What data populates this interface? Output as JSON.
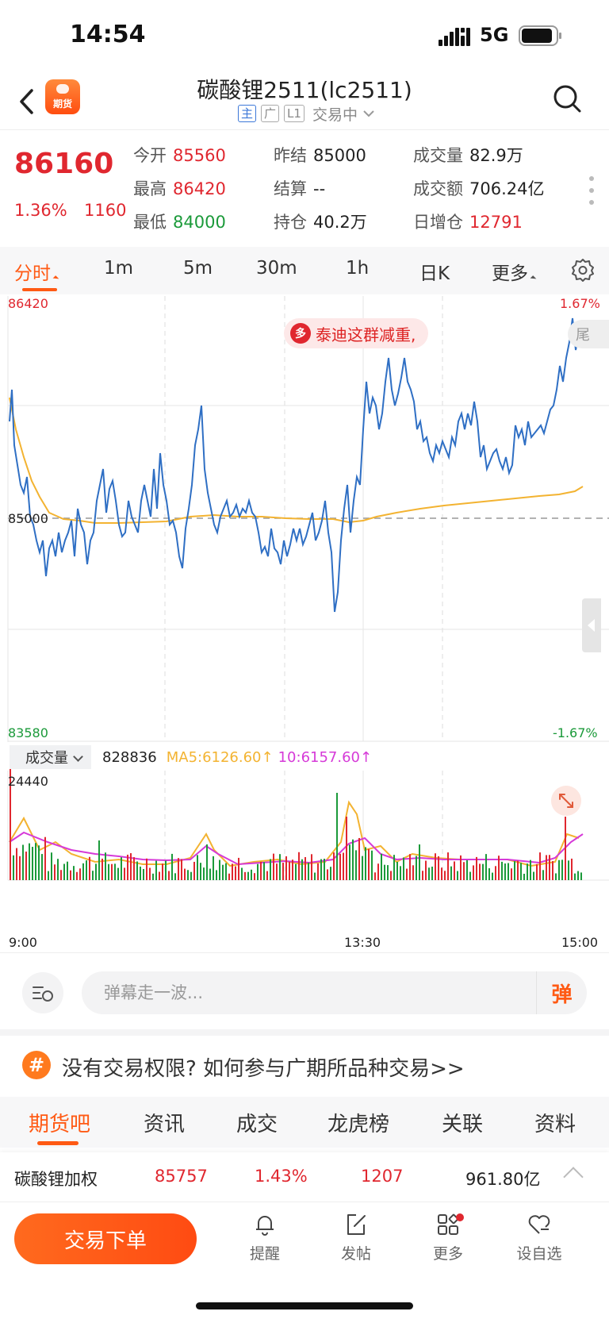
{
  "status_bar": {
    "time": "14:54",
    "network": "5G"
  },
  "header": {
    "logo_text": "期货",
    "title": "碳酸锂2511(lc2511)",
    "tags": [
      "主",
      "广",
      "L1"
    ],
    "trade_status": "交易中"
  },
  "quote": {
    "last_price": "86160",
    "change_pct": "1.36%",
    "change_abs": "1160",
    "stats": [
      {
        "label": "今开",
        "value": "85560",
        "color": "red"
      },
      {
        "label": "昨结",
        "value": "85000",
        "color": "dark"
      },
      {
        "label": "成交量",
        "value": "82.9万",
        "color": "dark"
      },
      {
        "label": "最高",
        "value": "86420",
        "color": "red"
      },
      {
        "label": "结算",
        "value": "--",
        "color": "dark"
      },
      {
        "label": "成交额",
        "value": "706.24亿",
        "color": "dark"
      },
      {
        "label": "最低",
        "value": "84000",
        "color": "green"
      },
      {
        "label": "持仓",
        "value": "40.2万",
        "color": "dark"
      },
      {
        "label": "日增仓",
        "value": "12791",
        "color": "red"
      }
    ]
  },
  "chart_tabs": [
    "分时",
    "1m",
    "5m",
    "30m",
    "1h",
    "日K",
    "更多"
  ],
  "chart": {
    "price_high": "86420",
    "price_low": "83580",
    "pct_high": "1.67%",
    "pct_low": "-1.67%",
    "prev_settle": "85000",
    "news_text": "泰迪这群减重,",
    "tail_text": "尾",
    "volume_selector": "成交量",
    "volume_value": "828836",
    "ma5": "MA5:6126.60↑",
    "ma10": "10:6157.60↑",
    "volume_max": "24440",
    "time_start": "9:00",
    "time_mid": "13:30",
    "time_end": "15:00",
    "colors": {
      "up": "#e0272f",
      "down": "#1b9a3a",
      "price_line": "#2f6fc4",
      "avg_line": "#f3b331",
      "ma10": "#d63ad8"
    }
  },
  "danmaku": {
    "placeholder": "弹幕走一波...",
    "send_label": "弹"
  },
  "promo": {
    "icon": "#",
    "text": "没有交易权限? 如何参与广期所品种交易>>"
  },
  "bottom_tabs": [
    "期货吧",
    "资讯",
    "成交",
    "龙虎榜",
    "关联",
    "资料"
  ],
  "weighted": {
    "name": "碳酸锂加权",
    "price": "85757",
    "pct": "1.43%",
    "change": "1207",
    "amount": "961.80亿"
  },
  "bottom_bar": {
    "trade_button": "交易下单",
    "nav": [
      "提醒",
      "发帖",
      "更多",
      "设自选"
    ]
  }
}
